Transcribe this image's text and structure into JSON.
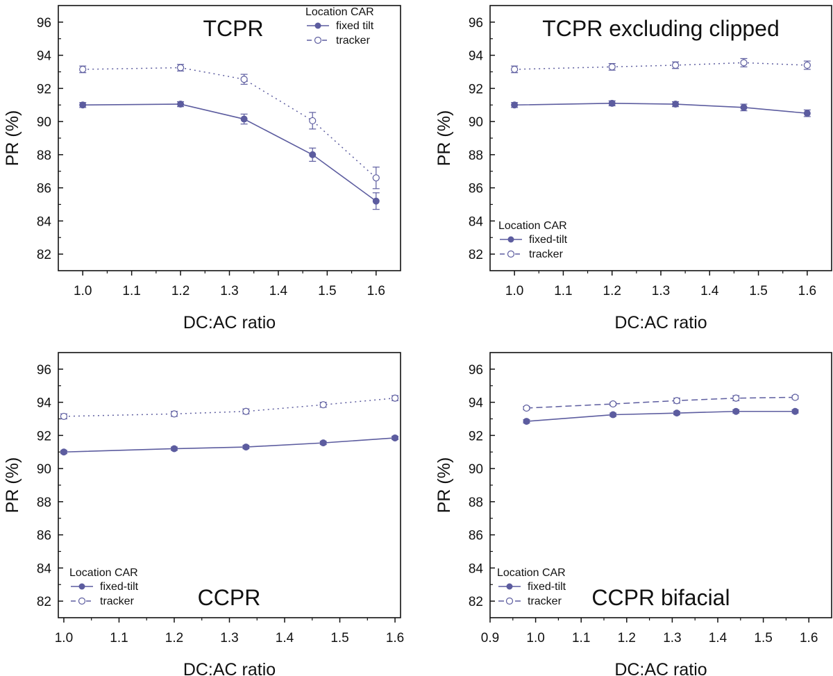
{
  "colors": {
    "series": "#5c5c9f",
    "axis": "#111111"
  },
  "chart_data": [
    {
      "type": "line",
      "title": "TCPR",
      "xlabel": "DC:AC ratio",
      "ylabel": "PR (%)",
      "xlim": [
        0.95,
        1.65
      ],
      "ylim": [
        81,
        97
      ],
      "xticks": [
        1.0,
        1.1,
        1.2,
        1.3,
        1.4,
        1.5,
        1.6
      ],
      "xtick_labels": [
        "1.0",
        "1.1",
        "1.2",
        "1.3",
        "1.4",
        "1.5",
        "1.6"
      ],
      "yticks": [
        82,
        84,
        86,
        88,
        90,
        92,
        94,
        96
      ],
      "ytick_labels": [
        "82",
        "84",
        "86",
        "88",
        "90",
        "92",
        "94",
        "96"
      ],
      "grid": false,
      "legend": {
        "title": "Location CAR",
        "placement": "top-right"
      },
      "series": [
        {
          "name": "fixed tilt",
          "marker": "filled-circle",
          "line": "solid",
          "x": [
            1.0,
            1.2,
            1.33,
            1.47,
            1.6
          ],
          "y": [
            91.0,
            91.05,
            90.15,
            88.0,
            85.2
          ],
          "err": [
            0.15,
            0.15,
            0.3,
            0.4,
            0.5
          ]
        },
        {
          "name": "tracker",
          "marker": "open-circle",
          "line": "dotted",
          "x": [
            1.0,
            1.2,
            1.33,
            1.47,
            1.6
          ],
          "y": [
            93.15,
            93.25,
            92.55,
            90.05,
            86.6
          ],
          "err": [
            0.2,
            0.2,
            0.3,
            0.5,
            0.65
          ]
        }
      ]
    },
    {
      "type": "line",
      "title": "TCPR excluding clipped",
      "xlabel": "DC:AC ratio",
      "ylabel": "PR (%)",
      "xlim": [
        0.95,
        1.65
      ],
      "ylim": [
        81,
        97
      ],
      "xticks": [
        1.0,
        1.1,
        1.2,
        1.3,
        1.4,
        1.5,
        1.6
      ],
      "xtick_labels": [
        "1.0",
        "1.1",
        "1.2",
        "1.3",
        "1.4",
        "1.5",
        "1.6"
      ],
      "yticks": [
        82,
        84,
        86,
        88,
        90,
        92,
        94,
        96
      ],
      "ytick_labels": [
        "82",
        "84",
        "86",
        "88",
        "90",
        "92",
        "94",
        "96"
      ],
      "grid": false,
      "legend": {
        "title": "Location CAR",
        "placement": "bottom-left"
      },
      "series": [
        {
          "name": "fixed-tilt",
          "marker": "filled-circle",
          "line": "solid",
          "x": [
            1.0,
            1.2,
            1.33,
            1.47,
            1.6
          ],
          "y": [
            91.0,
            91.1,
            91.05,
            90.85,
            90.5
          ],
          "err": [
            0.15,
            0.15,
            0.15,
            0.2,
            0.2
          ]
        },
        {
          "name": "tracker",
          "marker": "open-circle",
          "line": "dotted",
          "x": [
            1.0,
            1.2,
            1.33,
            1.47,
            1.6
          ],
          "y": [
            93.15,
            93.3,
            93.4,
            93.55,
            93.4
          ],
          "err": [
            0.2,
            0.2,
            0.2,
            0.25,
            0.25
          ]
        }
      ]
    },
    {
      "type": "line",
      "title": "CCPR",
      "xlabel": "DC:AC ratio",
      "ylabel": "PR (%)",
      "xlim": [
        0.99,
        1.61
      ],
      "ylim": [
        81,
        97
      ],
      "xticks": [
        1.0,
        1.1,
        1.2,
        1.3,
        1.4,
        1.5,
        1.6
      ],
      "xtick_labels": [
        "1.0",
        "1.1",
        "1.2",
        "1.3",
        "1.4",
        "1.5",
        "1.6"
      ],
      "yticks": [
        82,
        84,
        86,
        88,
        90,
        92,
        94,
        96
      ],
      "ytick_labels": [
        "82",
        "84",
        "86",
        "88",
        "90",
        "92",
        "94",
        "96"
      ],
      "grid": false,
      "legend": {
        "title": "Location CAR",
        "placement": "bottom-left"
      },
      "series": [
        {
          "name": "fixed-tilt",
          "marker": "filled-circle",
          "line": "solid",
          "x": [
            1.0,
            1.2,
            1.33,
            1.47,
            1.6
          ],
          "y": [
            91.0,
            91.2,
            91.3,
            91.55,
            91.85
          ],
          "err": [
            0.1,
            0.1,
            0.1,
            0.1,
            0.1
          ]
        },
        {
          "name": "tracker",
          "marker": "open-circle",
          "line": "dotted",
          "x": [
            1.0,
            1.2,
            1.33,
            1.47,
            1.6
          ],
          "y": [
            93.15,
            93.3,
            93.45,
            93.85,
            94.25
          ],
          "err": [
            0.15,
            0.15,
            0.15,
            0.15,
            0.15
          ]
        }
      ]
    },
    {
      "type": "line",
      "title": "CCPR bifacial",
      "xlabel": "DC:AC ratio",
      "ylabel": "PR (%)",
      "xlim": [
        0.9,
        1.65
      ],
      "ylim": [
        81,
        97
      ],
      "xticks": [
        0.9,
        1.0,
        1.1,
        1.2,
        1.3,
        1.4,
        1.5,
        1.6
      ],
      "xtick_labels": [
        "0.9",
        "1.0",
        "1.1",
        "1.2",
        "1.3",
        "1.4",
        "1.5",
        "1.6"
      ],
      "yticks": [
        82,
        84,
        86,
        88,
        90,
        92,
        94,
        96
      ],
      "ytick_labels": [
        "82",
        "84",
        "86",
        "88",
        "90",
        "92",
        "94",
        "96"
      ],
      "grid": false,
      "legend": {
        "title": "Location CAR",
        "placement": "bottom-left"
      },
      "series": [
        {
          "name": "fixed-tilt",
          "marker": "filled-circle",
          "line": "solid",
          "x": [
            0.98,
            1.17,
            1.31,
            1.44,
            1.57
          ],
          "y": [
            92.85,
            93.25,
            93.35,
            93.45,
            93.45
          ],
          "err": [
            0.1,
            0.1,
            0.1,
            0.1,
            0.1
          ]
        },
        {
          "name": "tracker",
          "marker": "open-circle",
          "line": "dashed",
          "x": [
            0.98,
            1.17,
            1.31,
            1.44,
            1.57
          ],
          "y": [
            93.65,
            93.9,
            94.1,
            94.25,
            94.3
          ],
          "err": [
            0.1,
            0.1,
            0.15,
            0.15,
            0.1
          ]
        }
      ]
    }
  ]
}
